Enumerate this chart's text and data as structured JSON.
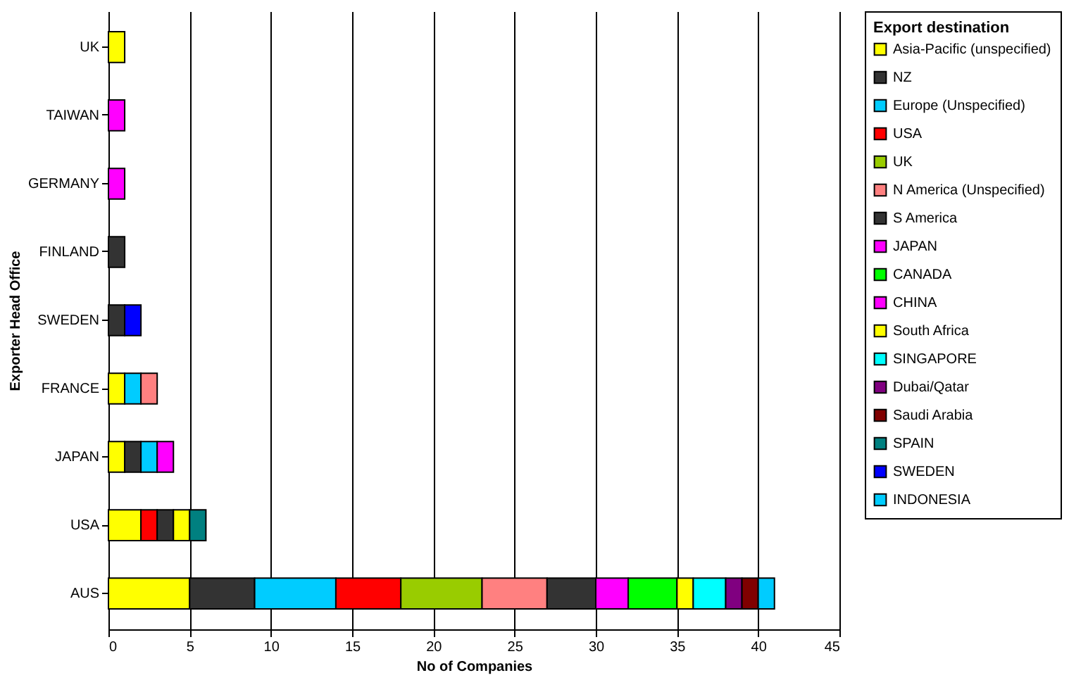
{
  "chart_data": {
    "type": "bar",
    "orientation": "horizontal",
    "stacked": true,
    "xlabel": "No of Companies",
    "ylabel": "Exporter Head Office",
    "legend_title": "Export destination",
    "legend": "right",
    "grid": "x",
    "xlim": [
      0,
      45
    ],
    "xticks": [
      0,
      5,
      10,
      15,
      20,
      25,
      30,
      35,
      40,
      45
    ],
    "categories": [
      "UK",
      "TAIWAN",
      "GERMANY",
      "FINLAND",
      "SWEDEN",
      "FRANCE",
      "JAPAN",
      "USA",
      "AUS"
    ],
    "series": [
      {
        "name": "Asia-Pacific (unspecified)",
        "color": "#ffff00",
        "values": [
          1,
          null,
          null,
          null,
          null,
          1,
          1,
          2,
          5
        ]
      },
      {
        "name": "NZ",
        "color": "#333333",
        "values": [
          null,
          null,
          null,
          1,
          1,
          null,
          1,
          null,
          4
        ]
      },
      {
        "name": "Europe (Unspecified)",
        "color": "#00ccff",
        "values": [
          null,
          null,
          null,
          null,
          null,
          1,
          1,
          null,
          5
        ]
      },
      {
        "name": "USA",
        "color": "#ff0000",
        "values": [
          null,
          null,
          null,
          null,
          null,
          null,
          null,
          1,
          4
        ]
      },
      {
        "name": "UK",
        "color": "#99cc00",
        "values": [
          null,
          null,
          null,
          null,
          null,
          null,
          null,
          null,
          5
        ]
      },
      {
        "name": "N America (Unspecified)",
        "color": "#ff8080",
        "values": [
          null,
          null,
          null,
          null,
          null,
          1,
          null,
          null,
          4
        ]
      },
      {
        "name": "S America",
        "color": "#333333",
        "values": [
          null,
          null,
          null,
          null,
          null,
          null,
          null,
          1,
          3
        ]
      },
      {
        "name": "JAPAN",
        "color": "#ff00ff",
        "values": [
          null,
          null,
          null,
          null,
          null,
          null,
          null,
          null,
          2
        ]
      },
      {
        "name": "CANADA",
        "color": "#00ff00",
        "values": [
          null,
          null,
          null,
          null,
          null,
          null,
          null,
          null,
          3
        ]
      },
      {
        "name": "CHINA",
        "color": "#ff00ff",
        "values": [
          null,
          1,
          1,
          null,
          null,
          null,
          1,
          null,
          null
        ]
      },
      {
        "name": "South Africa",
        "color": "#ffff00",
        "values": [
          null,
          null,
          null,
          null,
          null,
          null,
          null,
          1,
          1
        ]
      },
      {
        "name": "SINGAPORE",
        "color": "#00ffff",
        "values": [
          null,
          null,
          null,
          null,
          null,
          null,
          null,
          null,
          2
        ]
      },
      {
        "name": "Dubai/Qatar",
        "color": "#800080",
        "values": [
          null,
          null,
          null,
          null,
          null,
          null,
          null,
          null,
          1
        ]
      },
      {
        "name": "Saudi Arabia",
        "color": "#800000",
        "values": [
          null,
          null,
          null,
          null,
          null,
          null,
          null,
          null,
          1
        ]
      },
      {
        "name": "SPAIN",
        "color": "#008080",
        "values": [
          null,
          null,
          null,
          null,
          null,
          null,
          null,
          1,
          null
        ]
      },
      {
        "name": "SWEDEN",
        "color": "#0000ff",
        "values": [
          null,
          null,
          null,
          null,
          1,
          null,
          null,
          null,
          null
        ]
      },
      {
        "name": "INDONESIA",
        "color": "#00ccff",
        "values": [
          null,
          null,
          null,
          null,
          null,
          null,
          null,
          null,
          1
        ]
      }
    ]
  }
}
